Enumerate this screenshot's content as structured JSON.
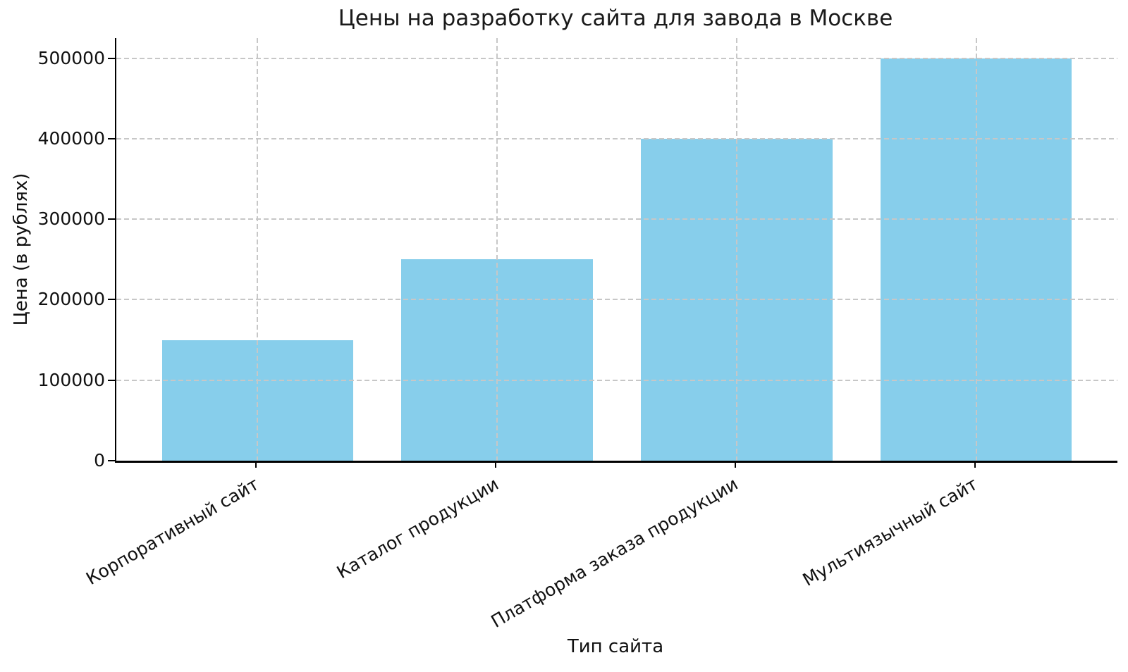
{
  "page": {
    "background_color": "#ffffff",
    "text_color": "#111111"
  },
  "chart_data": {
    "type": "bar",
    "title": "Цены на разработку сайта для завода в Москве",
    "xlabel": "Тип сайта",
    "ylabel": "Цена (в рублях)",
    "categories": [
      "Корпоративный сайт",
      "Каталог продукции",
      "Платформа заказа продукции",
      "Мультиязычный сайт"
    ],
    "values": [
      150000,
      250000,
      400000,
      500000
    ],
    "yticks": [
      0,
      100000,
      200000,
      300000,
      400000,
      500000
    ],
    "ytick_labels": [
      "0",
      "100000",
      "200000",
      "300000",
      "400000",
      "500000"
    ],
    "ylim": [
      0,
      525000
    ],
    "bar_color": "#87CEEB",
    "grid": {
      "visible": true,
      "axes": "both",
      "linestyle": "dashed",
      "color": "#C7C7C7",
      "drawn_over_bars": true
    },
    "spines": {
      "left": true,
      "bottom": true,
      "top": false,
      "right": false,
      "color": "#000000"
    },
    "xtick_label_rotation_deg": 30,
    "legend": null
  }
}
